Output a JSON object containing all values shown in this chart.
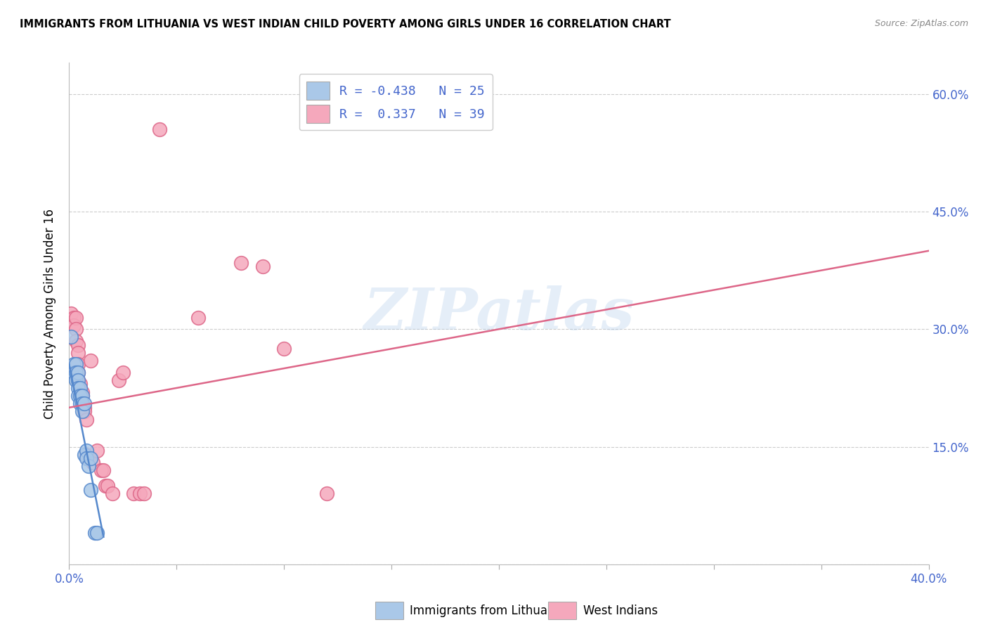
{
  "title": "IMMIGRANTS FROM LITHUANIA VS WEST INDIAN CHILD POVERTY AMONG GIRLS UNDER 16 CORRELATION CHART",
  "source": "Source: ZipAtlas.com",
  "ylabel": "Child Poverty Among Girls Under 16",
  "watermark": "ZIPatlas",
  "blue_color": "#aac8e8",
  "pink_color": "#f5a8bc",
  "blue_line_color": "#5588cc",
  "pink_line_color": "#dd6688",
  "blue_scatter": [
    [
      0.001,
      0.29
    ],
    [
      0.002,
      0.255
    ],
    [
      0.002,
      0.245
    ],
    [
      0.003,
      0.255
    ],
    [
      0.003,
      0.245
    ],
    [
      0.003,
      0.235
    ],
    [
      0.004,
      0.245
    ],
    [
      0.004,
      0.235
    ],
    [
      0.004,
      0.225
    ],
    [
      0.004,
      0.215
    ],
    [
      0.005,
      0.225
    ],
    [
      0.005,
      0.215
    ],
    [
      0.005,
      0.205
    ],
    [
      0.006,
      0.215
    ],
    [
      0.006,
      0.205
    ],
    [
      0.006,
      0.195
    ],
    [
      0.007,
      0.205
    ],
    [
      0.007,
      0.14
    ],
    [
      0.008,
      0.145
    ],
    [
      0.008,
      0.135
    ],
    [
      0.009,
      0.125
    ],
    [
      0.01,
      0.135
    ],
    [
      0.01,
      0.095
    ],
    [
      0.012,
      0.04
    ],
    [
      0.013,
      0.04
    ]
  ],
  "pink_scatter": [
    [
      0.001,
      0.32
    ],
    [
      0.002,
      0.315
    ],
    [
      0.002,
      0.305
    ],
    [
      0.003,
      0.315
    ],
    [
      0.003,
      0.3
    ],
    [
      0.003,
      0.285
    ],
    [
      0.004,
      0.28
    ],
    [
      0.004,
      0.27
    ],
    [
      0.004,
      0.255
    ],
    [
      0.004,
      0.245
    ],
    [
      0.004,
      0.235
    ],
    [
      0.005,
      0.23
    ],
    [
      0.005,
      0.22
    ],
    [
      0.006,
      0.215
    ],
    [
      0.006,
      0.22
    ],
    [
      0.007,
      0.2
    ],
    [
      0.007,
      0.195
    ],
    [
      0.008,
      0.185
    ],
    [
      0.008,
      0.14
    ],
    [
      0.009,
      0.135
    ],
    [
      0.01,
      0.26
    ],
    [
      0.011,
      0.13
    ],
    [
      0.013,
      0.145
    ],
    [
      0.015,
      0.12
    ],
    [
      0.016,
      0.12
    ],
    [
      0.017,
      0.1
    ],
    [
      0.018,
      0.1
    ],
    [
      0.02,
      0.09
    ],
    [
      0.023,
      0.235
    ],
    [
      0.025,
      0.245
    ],
    [
      0.03,
      0.09
    ],
    [
      0.033,
      0.09
    ],
    [
      0.035,
      0.09
    ],
    [
      0.06,
      0.315
    ],
    [
      0.08,
      0.385
    ],
    [
      0.09,
      0.38
    ],
    [
      0.1,
      0.275
    ],
    [
      0.12,
      0.09
    ],
    [
      0.042,
      0.555
    ]
  ],
  "blue_line_x": [
    0.0,
    0.016
  ],
  "blue_line_y": [
    0.255,
    0.035
  ],
  "pink_line_x": [
    0.0,
    0.4
  ],
  "pink_line_y": [
    0.2,
    0.4
  ],
  "xmin": 0.0,
  "xmax": 0.4,
  "ymin": 0.0,
  "ymax": 0.64,
  "ytick_vals": [
    0.0,
    0.15,
    0.3,
    0.45,
    0.6
  ],
  "ytick_labels": [
    "",
    "15.0%",
    "30.0%",
    "45.0%",
    "60.0%"
  ],
  "xtick_vals": [
    0.0,
    0.05,
    0.1,
    0.15,
    0.2,
    0.25,
    0.3,
    0.35,
    0.4
  ]
}
